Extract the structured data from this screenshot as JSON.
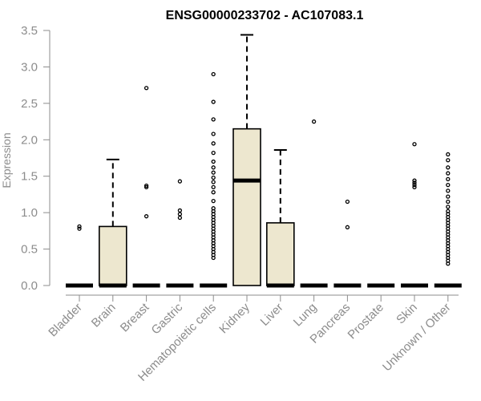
{
  "chart_data": {
    "type": "box",
    "title": "ENSG00000233702 - AC107083.1",
    "xlabel": "",
    "ylabel": "Expression",
    "ylim": [
      0,
      3.5
    ],
    "yticks": [
      "0.0",
      "0.5",
      "1.0",
      "1.5",
      "2.0",
      "2.5",
      "3.0",
      "3.5"
    ],
    "grid": false,
    "legend": "none",
    "box_fill": "#ede7cf",
    "categories": [
      "Bladder",
      "Brain",
      "Breast",
      "Gastric",
      "Hematopoietic cells",
      "Kidney",
      "Liver",
      "Lung",
      "Pancreas",
      "Prostate",
      "Skin",
      "Unknown / Other"
    ],
    "boxes": [
      {
        "q1": 0,
        "median": 0,
        "q3": 0,
        "whisker_low": 0,
        "whisker_high": 0,
        "outliers": [
          0.78,
          0.81
        ]
      },
      {
        "q1": 0,
        "median": 0,
        "q3": 0.81,
        "whisker_low": 0,
        "whisker_high": 1.73,
        "outliers": []
      },
      {
        "q1": 0,
        "median": 0,
        "q3": 0,
        "whisker_low": 0,
        "whisker_high": 0,
        "outliers": [
          0.95,
          1.35,
          1.37,
          2.71
        ]
      },
      {
        "q1": 0,
        "median": 0,
        "q3": 0,
        "whisker_low": 0,
        "whisker_high": 0,
        "outliers": [
          0.93,
          0.98,
          1.03,
          1.43
        ]
      },
      {
        "q1": 0,
        "median": 0,
        "q3": 0,
        "whisker_low": 0,
        "whisker_high": 0,
        "outliers": [
          0.38,
          0.42,
          0.46,
          0.5,
          0.54,
          0.58,
          0.62,
          0.66,
          0.7,
          0.74,
          0.78,
          0.82,
          0.86,
          0.9,
          0.94,
          0.98,
          1.02,
          1.06,
          1.16,
          1.28,
          1.35,
          1.42,
          1.48,
          1.55,
          1.62,
          1.7,
          1.82,
          1.95,
          2.08,
          2.28,
          2.52,
          2.9
        ]
      },
      {
        "q1": 0,
        "median": 1.44,
        "q3": 2.15,
        "whisker_low": 0,
        "whisker_high": 3.44,
        "outliers": []
      },
      {
        "q1": 0,
        "median": 0,
        "q3": 0.86,
        "whisker_low": 0,
        "whisker_high": 1.86,
        "outliers": []
      },
      {
        "q1": 0,
        "median": 0,
        "q3": 0,
        "whisker_low": 0,
        "whisker_high": 0,
        "outliers": [
          2.25
        ]
      },
      {
        "q1": 0,
        "median": 0,
        "q3": 0,
        "whisker_low": 0,
        "whisker_high": 0,
        "outliers": [
          0.8,
          1.15
        ]
      },
      {
        "q1": 0,
        "median": 0,
        "q3": 0,
        "whisker_low": 0,
        "whisker_high": 0,
        "outliers": []
      },
      {
        "q1": 0,
        "median": 0,
        "q3": 0,
        "whisker_low": 0,
        "whisker_high": 0,
        "outliers": [
          1.35,
          1.38,
          1.41,
          1.44,
          1.94
        ]
      },
      {
        "q1": 0,
        "median": 0,
        "q3": 0,
        "whisker_low": 0,
        "whisker_high": 0,
        "outliers": [
          0.3,
          0.34,
          0.38,
          0.42,
          0.46,
          0.5,
          0.54,
          0.58,
          0.62,
          0.66,
          0.7,
          0.74,
          0.78,
          0.82,
          0.86,
          0.9,
          0.94,
          0.98,
          1.02,
          1.08,
          1.15,
          1.22,
          1.3,
          1.38,
          1.46,
          1.54,
          1.62,
          1.72,
          1.8
        ]
      }
    ]
  }
}
